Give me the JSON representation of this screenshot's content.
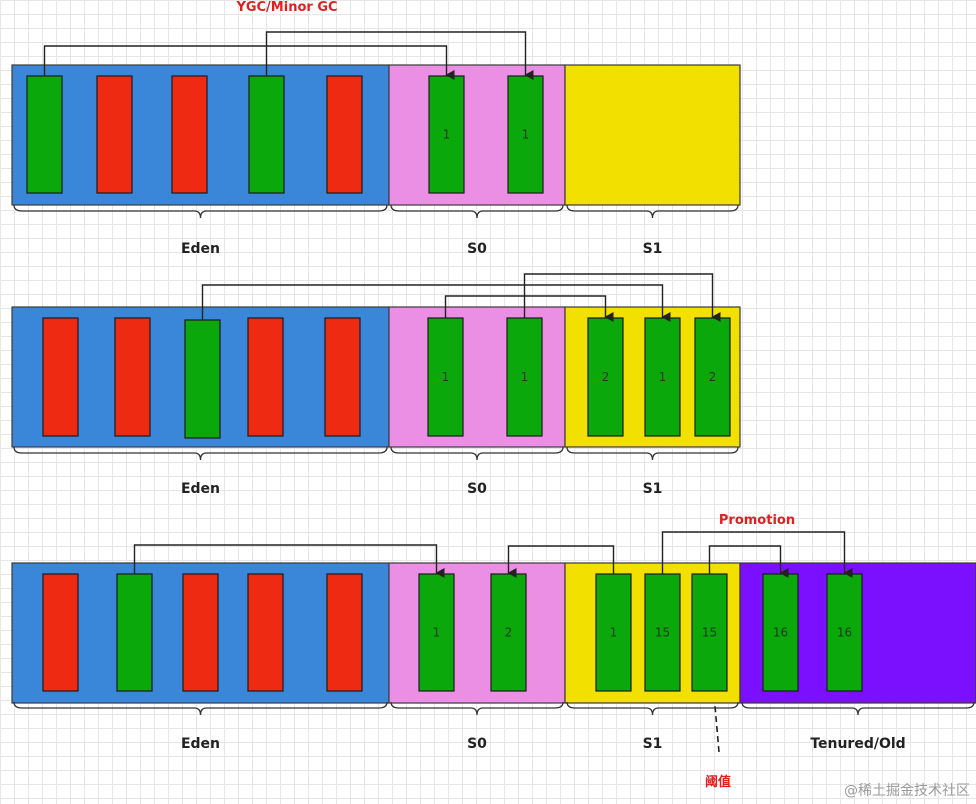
{
  "colors": {
    "eden": "#3a86d8",
    "s0": "#ea8fe3",
    "s1": "#f2e000",
    "tenured": "#7a10ff",
    "live": "#0aa80a",
    "dead": "#ee2a12",
    "arrow": "#222222",
    "title_red": "#e02020"
  },
  "title": "YGC/Minor GC",
  "promotion_label": "Promotion",
  "threshold_label": "阈值",
  "watermark": "@稀土掘金技术社区",
  "panels": [
    {
      "regions": [
        {
          "name": "Eden",
          "color": "eden"
        },
        {
          "name": "S0",
          "color": "s0"
        },
        {
          "name": "S1",
          "color": "s1"
        }
      ],
      "objects": [
        {
          "region": "Eden",
          "state": "live",
          "age": ""
        },
        {
          "region": "Eden",
          "state": "dead",
          "age": ""
        },
        {
          "region": "Eden",
          "state": "dead",
          "age": ""
        },
        {
          "region": "Eden",
          "state": "live",
          "age": ""
        },
        {
          "region": "Eden",
          "state": "dead",
          "age": ""
        },
        {
          "region": "S0",
          "state": "live",
          "age": "1"
        },
        {
          "region": "S0",
          "state": "live",
          "age": "1"
        }
      ],
      "moves": [
        {
          "from": 0,
          "to": 5
        },
        {
          "from": 3,
          "to": 6
        }
      ]
    },
    {
      "regions": [
        {
          "name": "Eden",
          "color": "eden"
        },
        {
          "name": "S0",
          "color": "s0"
        },
        {
          "name": "S1",
          "color": "s1"
        }
      ],
      "objects": [
        {
          "region": "Eden",
          "state": "dead",
          "age": ""
        },
        {
          "region": "Eden",
          "state": "dead",
          "age": ""
        },
        {
          "region": "Eden",
          "state": "live",
          "age": ""
        },
        {
          "region": "Eden",
          "state": "dead",
          "age": ""
        },
        {
          "region": "Eden",
          "state": "dead",
          "age": ""
        },
        {
          "region": "S0",
          "state": "live",
          "age": "1"
        },
        {
          "region": "S0",
          "state": "live",
          "age": "1"
        },
        {
          "region": "S1",
          "state": "live",
          "age": "2"
        },
        {
          "region": "S1",
          "state": "live",
          "age": "1"
        },
        {
          "region": "S1",
          "state": "live",
          "age": "2"
        }
      ],
      "moves": [
        {
          "from": 5,
          "to": 7
        },
        {
          "from": 2,
          "to": 8
        },
        {
          "from": 6,
          "to": 9
        }
      ]
    },
    {
      "regions": [
        {
          "name": "Eden",
          "color": "eden"
        },
        {
          "name": "S0",
          "color": "s0"
        },
        {
          "name": "S1",
          "color": "s1"
        },
        {
          "name": "Tenured/Old",
          "color": "tenured"
        }
      ],
      "objects": [
        {
          "region": "Eden",
          "state": "dead",
          "age": ""
        },
        {
          "region": "Eden",
          "state": "live",
          "age": ""
        },
        {
          "region": "Eden",
          "state": "dead",
          "age": ""
        },
        {
          "region": "Eden",
          "state": "dead",
          "age": ""
        },
        {
          "region": "Eden",
          "state": "dead",
          "age": ""
        },
        {
          "region": "S0",
          "state": "live",
          "age": "1"
        },
        {
          "region": "S0",
          "state": "live",
          "age": "2"
        },
        {
          "region": "S1",
          "state": "live",
          "age": "1"
        },
        {
          "region": "S1",
          "state": "live",
          "age": "15"
        },
        {
          "region": "S1",
          "state": "live",
          "age": "15"
        },
        {
          "region": "Tenured/Old",
          "state": "live",
          "age": "16"
        },
        {
          "region": "Tenured/Old",
          "state": "live",
          "age": "16"
        }
      ],
      "moves": [
        {
          "from": 1,
          "to": 5
        },
        {
          "from": 7,
          "to": 6
        },
        {
          "from": 9,
          "to": 10
        },
        {
          "from": 8,
          "to": 11
        }
      ]
    }
  ]
}
